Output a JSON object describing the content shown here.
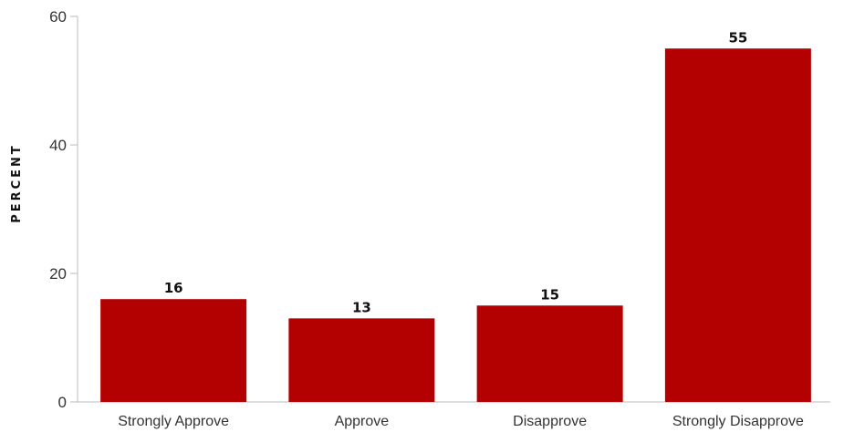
{
  "chart_data": {
    "type": "bar",
    "categories": [
      "Strongly Approve",
      "Approve",
      "Disapprove",
      "Strongly Disapprove"
    ],
    "values": [
      16,
      13,
      15,
      55
    ],
    "data_labels": [
      "16",
      "13",
      "15",
      "55"
    ],
    "title": "",
    "xlabel": "",
    "ylabel": "PERCENT",
    "ylim": [
      0,
      60
    ],
    "yticks": [
      0,
      20,
      40,
      60
    ],
    "grid": false,
    "legend": "none",
    "bar_color": "#b30000"
  }
}
